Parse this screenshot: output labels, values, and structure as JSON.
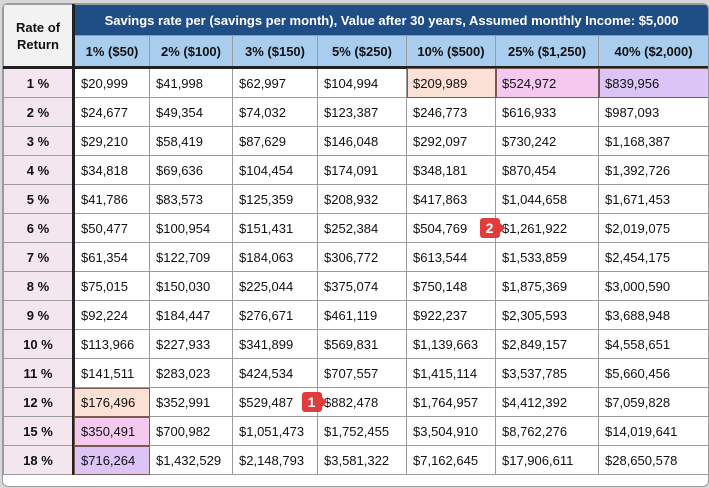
{
  "table": {
    "corner_label": "Rate of\nReturn",
    "title": "Savings rate per (savings per month), Value after 30 years, Assumed monthly Income: $5,000",
    "columns": [
      "1% ($50)",
      "2% ($100)",
      "3% ($150)",
      "5% ($250)",
      "10% ($500)",
      "25% ($1,250)",
      "40% ($2,000)"
    ],
    "rows": [
      {
        "rate": "1 %",
        "values": [
          "$20,999",
          "$41,998",
          "$62,997",
          "$104,994",
          "$209,989",
          "$524,972",
          "$839,956"
        ]
      },
      {
        "rate": "2 %",
        "values": [
          "$24,677",
          "$49,354",
          "$74,032",
          "$123,387",
          "$246,773",
          "$616,933",
          "$987,093"
        ]
      },
      {
        "rate": "3 %",
        "values": [
          "$29,210",
          "$58,419",
          "$87,629",
          "$146,048",
          "$292,097",
          "$730,242",
          "$1,168,387"
        ]
      },
      {
        "rate": "4 %",
        "values": [
          "$34,818",
          "$69,636",
          "$104,454",
          "$174,091",
          "$348,181",
          "$870,454",
          "$1,392,726"
        ]
      },
      {
        "rate": "5 %",
        "values": [
          "$41,786",
          "$83,573",
          "$125,359",
          "$208,932",
          "$417,863",
          "$1,044,658",
          "$1,671,453"
        ]
      },
      {
        "rate": "6 %",
        "values": [
          "$50,477",
          "$100,954",
          "$151,431",
          "$252,384",
          "$504,769",
          "$1,261,922",
          "$2,019,075"
        ]
      },
      {
        "rate": "7 %",
        "values": [
          "$61,354",
          "$122,709",
          "$184,063",
          "$306,772",
          "$613,544",
          "$1,533,859",
          "$2,454,175"
        ]
      },
      {
        "rate": "8 %",
        "values": [
          "$75,015",
          "$150,030",
          "$225,044",
          "$375,074",
          "$750,148",
          "$1,875,369",
          "$3,000,590"
        ]
      },
      {
        "rate": "9 %",
        "values": [
          "$92,224",
          "$184,447",
          "$276,671",
          "$461,119",
          "$922,237",
          "$2,305,593",
          "$3,688,948"
        ]
      },
      {
        "rate": "10 %",
        "values": [
          "$113,966",
          "$227,933",
          "$341,899",
          "$569,831",
          "$1,139,663",
          "$2,849,157",
          "$4,558,651"
        ]
      },
      {
        "rate": "11 %",
        "values": [
          "$141,511",
          "$283,023",
          "$424,534",
          "$707,557",
          "$1,415,114",
          "$3,537,785",
          "$5,660,456"
        ]
      },
      {
        "rate": "12 %",
        "values": [
          "$176,496",
          "$352,991",
          "$529,487",
          "$882,478",
          "$1,764,957",
          "$4,412,392",
          "$7,059,828"
        ]
      },
      {
        "rate": "15 %",
        "values": [
          "$350,491",
          "$700,982",
          "$1,051,473",
          "$1,752,455",
          "$3,504,910",
          "$8,762,276",
          "$14,019,641"
        ]
      },
      {
        "rate": "18 %",
        "values": [
          "$716,264",
          "$1,432,529",
          "$2,148,793",
          "$3,581,322",
          "$7,162,645",
          "$17,906,611",
          "$28,650,578"
        ]
      }
    ],
    "highlights": [
      {
        "row": 0,
        "col": 4,
        "style": "peach"
      },
      {
        "row": 0,
        "col": 5,
        "style": "pink"
      },
      {
        "row": 0,
        "col": 6,
        "style": "purple"
      },
      {
        "row": 11,
        "col": 0,
        "style": "peach"
      },
      {
        "row": 12,
        "col": 0,
        "style": "pink"
      },
      {
        "row": 13,
        "col": 0,
        "style": "purple"
      }
    ]
  },
  "badges": [
    {
      "label": "1",
      "row": 11,
      "col": 2
    },
    {
      "label": "2",
      "row": 5,
      "col": 4
    }
  ],
  "colors": {
    "title_bg": "#1f4e87",
    "column_header_bg": "#a9cdef",
    "row_header_bg": "#f3e6ee",
    "badge_red": "#e03c3c"
  }
}
